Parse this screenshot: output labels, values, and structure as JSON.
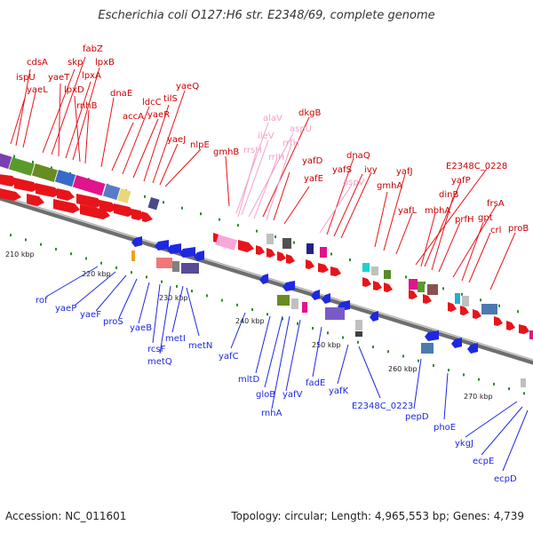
{
  "title": "Escherichia coli O127:H6 str. E2348/69, complete genome",
  "footer": {
    "accession": "Accession: NC_011601",
    "summary": "Topology: circular; Length: 4,965,553 bp; Genes: 4,739"
  },
  "colors": {
    "forward_gene": "#e8141a",
    "reverse_gene": "#1e28e0",
    "rna_gene": "#f08cc0",
    "axis": "#8a8a8a",
    "tick": "#2e8b2e"
  },
  "scale_labels": [
    "210 kbp",
    "220 kbp",
    "230 kbp",
    "240 kbp",
    "250 kbp",
    "260 kbp",
    "270 kbp"
  ],
  "top_labels": [
    {
      "text": "cdsA",
      "color": "#cc0000"
    },
    {
      "text": "fabZ",
      "color": "#cc0000"
    },
    {
      "text": "skp",
      "color": "#cc0000"
    },
    {
      "text": "lpxB",
      "color": "#cc0000"
    },
    {
      "text": "ispU",
      "color": "#cc0000"
    },
    {
      "text": "yaeT",
      "color": "#cc0000"
    },
    {
      "text": "lpxA",
      "color": "#cc0000"
    },
    {
      "text": "yaeL",
      "color": "#cc0000"
    },
    {
      "text": "lpxD",
      "color": "#cc0000"
    },
    {
      "text": "rnhB",
      "color": "#cc0000"
    },
    {
      "text": "dnaE",
      "color": "#cc0000"
    },
    {
      "text": "yaeQ",
      "color": "#cc0000"
    },
    {
      "text": "ldcC",
      "color": "#cc0000"
    },
    {
      "text": "tilS",
      "color": "#cc0000"
    },
    {
      "text": "accA",
      "color": "#cc0000"
    },
    {
      "text": "yaeR",
      "color": "#cc0000"
    },
    {
      "text": "yaeJ",
      "color": "#cc0000"
    },
    {
      "text": "nlpE",
      "color": "#cc0000"
    },
    {
      "text": "alaV",
      "color": "#f08cc0"
    },
    {
      "text": "dkgB",
      "color": "#cc0000"
    },
    {
      "text": "ileV",
      "color": "#f08cc0"
    },
    {
      "text": "aspU",
      "color": "#f08cc0"
    },
    {
      "text": "gmhB",
      "color": "#cc0000"
    },
    {
      "text": "rrsH",
      "color": "#f08cc0"
    },
    {
      "text": "rrlH",
      "color": "#f08cc0"
    },
    {
      "text": "rrfH",
      "color": "#f08cc0"
    },
    {
      "text": "yafD",
      "color": "#cc0000"
    },
    {
      "text": "dnaQ",
      "color": "#cc0000"
    },
    {
      "text": "yafS",
      "color": "#cc0000"
    },
    {
      "text": "ivy",
      "color": "#cc0000"
    },
    {
      "text": "yafE",
      "color": "#cc0000"
    },
    {
      "text": "aspV",
      "color": "#f08cc0"
    },
    {
      "text": "yafJ",
      "color": "#cc0000"
    },
    {
      "text": "gmhA",
      "color": "#cc0000"
    },
    {
      "text": "E2348C_0228",
      "color": "#cc0000"
    },
    {
      "text": "yafP",
      "color": "#cc0000"
    },
    {
      "text": "yafL",
      "color": "#cc0000"
    },
    {
      "text": "mbhA",
      "color": "#cc0000"
    },
    {
      "text": "dinB",
      "color": "#cc0000"
    },
    {
      "text": "prfH",
      "color": "#cc0000"
    },
    {
      "text": "frsA",
      "color": "#cc0000"
    },
    {
      "text": "gpt",
      "color": "#cc0000"
    },
    {
      "text": "crl",
      "color": "#cc0000"
    },
    {
      "text": "proB",
      "color": "#cc0000"
    }
  ],
  "bottom_labels": [
    {
      "text": "rof"
    },
    {
      "text": "yaeP"
    },
    {
      "text": "yaeF"
    },
    {
      "text": "proS"
    },
    {
      "text": "yaeB"
    },
    {
      "text": "rcsF"
    },
    {
      "text": "metQ"
    },
    {
      "text": "metI"
    },
    {
      "text": "metN"
    },
    {
      "text": "yafC"
    },
    {
      "text": "mltD"
    },
    {
      "text": "gloB"
    },
    {
      "text": "rnhA"
    },
    {
      "text": "yafV"
    },
    {
      "text": "fadE"
    },
    {
      "text": "yafK"
    },
    {
      "text": "E2348C_0223"
    },
    {
      "text": "pepD"
    },
    {
      "text": "phoE"
    },
    {
      "text": "ykgJ"
    },
    {
      "text": "ecpE"
    },
    {
      "text": "ecpD"
    }
  ]
}
